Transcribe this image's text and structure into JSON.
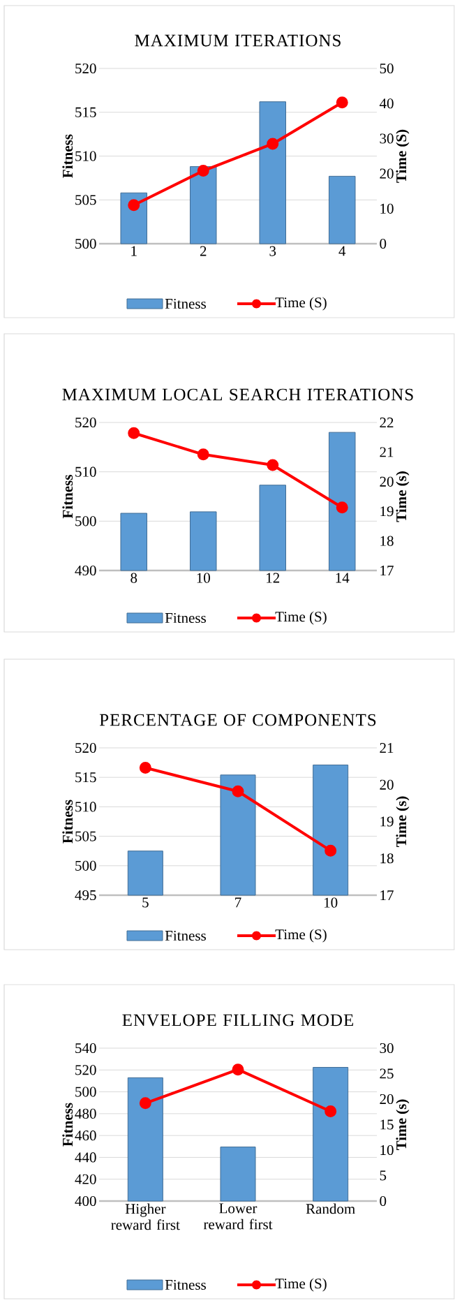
{
  "chart_data": [
    {
      "type": "bar",
      "title": "MAXIMUM ITERATIONS",
      "ylabel": "Fitness",
      "y2label": "Time (S)",
      "categories": [
        "1",
        "2",
        "3",
        "4"
      ],
      "series": [
        {
          "name": "Fitness",
          "type": "bar",
          "color": "#5b9bd5",
          "values": [
            505.8,
            508.8,
            516.2,
            507.7
          ]
        },
        {
          "name": "Time (S)",
          "type": "line",
          "axis": "y2",
          "color": "#ff0000",
          "marker": "circle",
          "line_style": "solid",
          "values": [
            11.0,
            20.8,
            28.5,
            40.3
          ]
        }
      ],
      "ylim": [
        500,
        520
      ],
      "yticks": [
        500,
        505,
        510,
        515,
        520
      ],
      "y2lim": [
        0,
        50
      ],
      "y2ticks": [
        0,
        10,
        20,
        30,
        40,
        50
      ],
      "grid": "y",
      "legend": "bottom"
    },
    {
      "type": "bar",
      "title": "MAXIMUM LOCAL SEARCH ITERATIONS",
      "ylabel": "Fitness",
      "y2label": "Time (s)",
      "categories": [
        "8",
        "10",
        "12",
        "14"
      ],
      "series": [
        {
          "name": "Fitness",
          "type": "bar",
          "color": "#5b9bd5",
          "values": [
            501.6,
            501.9,
            507.3,
            518.0
          ]
        },
        {
          "name": "Time (S)",
          "type": "line",
          "axis": "y2",
          "color": "#ff0000",
          "marker": "circle",
          "line_style": "solid",
          "values": [
            21.64,
            20.92,
            20.56,
            19.13
          ]
        }
      ],
      "ylim": [
        490,
        520
      ],
      "yticks": [
        490,
        500,
        510,
        520
      ],
      "y2lim": [
        17,
        22
      ],
      "y2ticks": [
        17,
        18,
        19,
        20,
        21,
        22
      ],
      "grid": "y",
      "legend": "bottom"
    },
    {
      "type": "bar",
      "title": "PERCENTAGE OF COMPONENTS",
      "ylabel": "Fitness",
      "y2label": "Time (s)",
      "categories": [
        "5",
        "7",
        "10"
      ],
      "series": [
        {
          "name": "Fitness",
          "type": "bar",
          "color": "#5b9bd5",
          "values": [
            502.5,
            515.4,
            517.1
          ]
        },
        {
          "name": "Time (S)",
          "type": "line",
          "axis": "y2",
          "color": "#ff0000",
          "marker": "circle",
          "line_style": "solid",
          "values": [
            20.46,
            19.82,
            18.21
          ]
        }
      ],
      "ylim": [
        495,
        520
      ],
      "yticks": [
        495,
        500,
        505,
        510,
        515,
        520
      ],
      "y2lim": [
        17,
        21
      ],
      "y2ticks": [
        17,
        18,
        19,
        20,
        21
      ],
      "grid": "y",
      "legend": "bottom"
    },
    {
      "type": "bar",
      "title": "ENVELOPE FILLING MODE",
      "ylabel": "Fitness",
      "y2label": "Time (s)",
      "categories": [
        "Higher reward first",
        "Lower reward first",
        "Random"
      ],
      "series": [
        {
          "name": "Fitness",
          "type": "bar",
          "color": "#5b9bd5",
          "values": [
            512.9,
            449.5,
            522.4
          ]
        },
        {
          "name": "Time (S)",
          "type": "line",
          "axis": "y2",
          "color": "#ff0000",
          "marker": "circle",
          "line_style": "solid",
          "values": [
            19.2,
            25.8,
            17.6
          ]
        }
      ],
      "ylim": [
        400,
        540
      ],
      "yticks": [
        400,
        420,
        440,
        460,
        480,
        500,
        520,
        540
      ],
      "y2lim": [
        0,
        30
      ],
      "y2ticks": [
        0,
        5,
        10,
        15,
        20,
        25,
        30
      ],
      "grid": "y",
      "legend": "bottom"
    }
  ]
}
